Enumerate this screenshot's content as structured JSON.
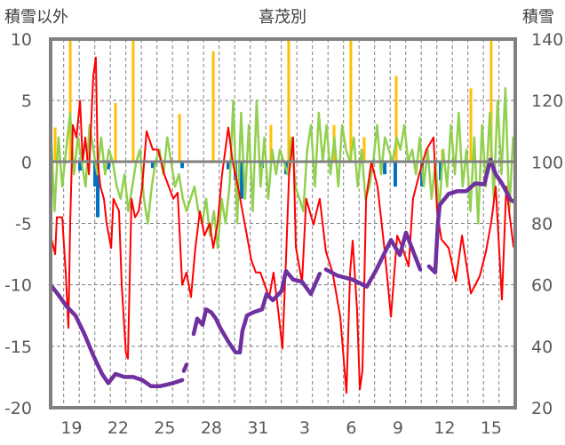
{
  "chart_data": {
    "type": "line",
    "title": "喜茂別",
    "left_axis_label": "積雪以外",
    "right_axis_label": "積雪",
    "ylim_left": [
      -20,
      10
    ],
    "ylim_right": [
      20,
      140
    ],
    "yticks_left": [
      "10",
      "5",
      "0",
      "-5",
      "-10",
      "-15",
      "-20"
    ],
    "yticks_right": [
      "140",
      "120",
      "100",
      "80",
      "60",
      "40",
      "20"
    ],
    "x_unit": "days since Dec 18 00:00",
    "xlim": [
      0.16,
      30.05
    ],
    "xticks": [
      {
        "x": 1.5,
        "label": "19"
      },
      {
        "x": 4.5,
        "label": "22"
      },
      {
        "x": 7.5,
        "label": "25"
      },
      {
        "x": 10.5,
        "label": "28"
      },
      {
        "x": 13.5,
        "label": "31"
      },
      {
        "x": 16.5,
        "label": "3"
      },
      {
        "x": 19.5,
        "label": "6"
      },
      {
        "x": 22.5,
        "label": "9"
      },
      {
        "x": 25.5,
        "label": "12"
      },
      {
        "x": 28.5,
        "label": "15"
      }
    ],
    "grid": true,
    "colors": {
      "red": "#ff0000",
      "green": "#92d050",
      "purple": "#7030a0",
      "orange": "#ffc000",
      "blue": "#0070c0",
      "frame": "#808080"
    },
    "series": [
      {
        "name": "red",
        "axis": "left",
        "color": "#ff0000",
        "points": [
          [
            0.16,
            -6
          ],
          [
            0.45,
            -7.5
          ],
          [
            0.56,
            -4.5
          ],
          [
            0.9,
            -4.5
          ],
          [
            1.13,
            -9
          ],
          [
            1.3,
            -13.5
          ],
          [
            1.42,
            -5
          ],
          [
            1.59,
            3
          ],
          [
            1.82,
            2
          ],
          [
            2.05,
            5
          ],
          [
            2.22,
            0
          ],
          [
            2.39,
            2
          ],
          [
            2.62,
            -1
          ],
          [
            2.9,
            7
          ],
          [
            3.07,
            8.5
          ],
          [
            3.19,
            0
          ],
          [
            3.36,
            -2
          ],
          [
            3.59,
            -3
          ],
          [
            3.76,
            -5
          ],
          [
            4.05,
            -7
          ],
          [
            4.2,
            -3
          ],
          [
            4.56,
            -4
          ],
          [
            4.73,
            -10
          ],
          [
            5.0,
            -15.5
          ],
          [
            5.13,
            -16
          ],
          [
            5.36,
            -3
          ],
          [
            5.59,
            -4.5
          ],
          [
            5.82,
            -4
          ],
          [
            6.05,
            -2
          ],
          [
            6.33,
            2.5
          ],
          [
            6.73,
            1
          ],
          [
            7.07,
            1
          ],
          [
            7.47,
            -1
          ],
          [
            7.76,
            -2
          ],
          [
            8.05,
            -3
          ],
          [
            8.33,
            -2.5
          ],
          [
            8.62,
            -10
          ],
          [
            8.9,
            -9
          ],
          [
            9.19,
            -11
          ],
          [
            9.47,
            -7
          ],
          [
            9.76,
            -4
          ],
          [
            10.05,
            -6
          ],
          [
            10.39,
            -5
          ],
          [
            10.62,
            -7
          ],
          [
            10.9,
            -5
          ],
          [
            11.19,
            -1
          ],
          [
            11.59,
            2.8
          ],
          [
            11.87,
            0
          ],
          [
            12.21,
            -2
          ],
          [
            12.5,
            -4
          ],
          [
            12.79,
            -6
          ],
          [
            13.07,
            -8
          ],
          [
            13.36,
            -9
          ],
          [
            13.65,
            -9
          ],
          [
            13.93,
            -10
          ],
          [
            14.22,
            -11
          ],
          [
            14.5,
            -9
          ],
          [
            14.79,
            -12
          ],
          [
            15.07,
            -15.2
          ],
          [
            15.3,
            -8
          ],
          [
            15.5,
            -1
          ],
          [
            15.76,
            2
          ],
          [
            15.93,
            -6.9
          ],
          [
            16.33,
            -9.8
          ],
          [
            16.6,
            -3
          ],
          [
            17.07,
            -5.1
          ],
          [
            17.47,
            -3
          ],
          [
            17.87,
            -7.3
          ],
          [
            18.3,
            -9
          ],
          [
            18.79,
            -12.6
          ],
          [
            19.19,
            -18.8
          ],
          [
            19.42,
            -9
          ],
          [
            19.59,
            -6.4
          ],
          [
            19.87,
            -12
          ],
          [
            20.05,
            -18.5
          ],
          [
            20.22,
            -17
          ],
          [
            20.45,
            -3
          ],
          [
            20.79,
            0
          ],
          [
            21.19,
            -2
          ],
          [
            21.65,
            -7.3
          ],
          [
            22.05,
            -12.6
          ],
          [
            22.45,
            -6
          ],
          [
            22.79,
            -7
          ],
          [
            23.19,
            -8.5
          ],
          [
            23.47,
            -3
          ],
          [
            23.87,
            -1
          ],
          [
            24.33,
            1
          ],
          [
            24.79,
            2
          ],
          [
            25.02,
            -4
          ],
          [
            25.3,
            -6.3
          ],
          [
            25.76,
            -7
          ],
          [
            26.22,
            -9.7
          ],
          [
            26.62,
            -6
          ],
          [
            27.19,
            -10.7
          ],
          [
            27.76,
            -9.3
          ],
          [
            28.16,
            -7.3
          ],
          [
            28.5,
            -4.9
          ],
          [
            28.79,
            -2
          ],
          [
            29.19,
            -11.2
          ],
          [
            29.47,
            -2
          ],
          [
            29.65,
            -4
          ],
          [
            29.93,
            -6.9
          ]
        ]
      },
      {
        "name": "green",
        "axis": "left",
        "color": "#92d050",
        "start": 0.16,
        "step": 0.25,
        "values": [
          3,
          -4,
          2,
          -2,
          1,
          4,
          -1,
          2,
          0,
          -2,
          3,
          1,
          -1,
          2,
          -1,
          1,
          0,
          -2,
          -3,
          -1,
          -4,
          -2,
          0,
          1,
          -3,
          -5,
          -2,
          0,
          1,
          -1,
          2,
          0,
          -2,
          -1,
          -3,
          -4,
          -3,
          -2,
          -4,
          -5,
          -3,
          -6,
          -4,
          -7,
          -3,
          -5,
          -2,
          5,
          -5,
          4,
          -3,
          3,
          -4,
          5,
          -2,
          2,
          -3,
          1,
          -1,
          1,
          0,
          -1,
          2,
          -2,
          -3,
          -4,
          1,
          3,
          -2,
          4,
          0,
          3,
          -1,
          2,
          -2,
          3,
          1,
          0,
          2,
          -2,
          1,
          -3,
          -2,
          0,
          3,
          -1,
          2,
          1,
          0,
          2,
          1,
          3,
          0,
          1,
          -1,
          2,
          -2,
          1,
          -3,
          0,
          -4,
          1,
          -2,
          3,
          -1,
          4,
          -2,
          1,
          -4,
          2,
          -5,
          3,
          -2,
          4,
          -3,
          5,
          -1,
          6,
          -4,
          2
        ]
      },
      {
        "name": "purple",
        "axis": "right",
        "color": "#7030a0",
        "points": [
          [
            0.16,
            60
          ],
          [
            0.62,
            57
          ],
          [
            1.19,
            53
          ],
          [
            1.76,
            50
          ],
          [
            2.33,
            44
          ],
          [
            2.9,
            37
          ],
          [
            3.47,
            31
          ],
          [
            3.87,
            28
          ],
          [
            4.33,
            31
          ],
          [
            4.9,
            30
          ],
          [
            5.47,
            30
          ],
          [
            6.05,
            29
          ],
          [
            6.62,
            27
          ],
          [
            7.19,
            27
          ],
          [
            8.05,
            28
          ],
          [
            8.62,
            29
          ],
          null,
          [
            8.73,
            32
          ],
          [
            8.9,
            34
          ],
          null,
          [
            9.36,
            44
          ],
          [
            9.59,
            49
          ],
          [
            9.93,
            47
          ],
          [
            10.16,
            52
          ],
          [
            10.5,
            51
          ],
          [
            10.79,
            49
          ],
          [
            11.07,
            46
          ],
          [
            11.65,
            41
          ],
          [
            12.05,
            38
          ],
          [
            12.33,
            38
          ],
          [
            12.5,
            45
          ],
          [
            12.79,
            50
          ],
          [
            13.19,
            51
          ],
          [
            13.76,
            52
          ],
          [
            14.05,
            57
          ],
          [
            14.45,
            55
          ],
          [
            15.02,
            58
          ],
          [
            15.3,
            64.5
          ],
          [
            15.76,
            61.7
          ],
          [
            16.33,
            61
          ],
          [
            16.9,
            57
          ],
          [
            17.47,
            63.6
          ],
          null,
          [
            17.87,
            65
          ],
          [
            18.61,
            63
          ],
          [
            19.59,
            61.7
          ],
          [
            20.5,
            59.4
          ],
          [
            21.07,
            64.5
          ],
          [
            22.05,
            74.6
          ],
          [
            22.62,
            69.7
          ],
          [
            23.02,
            77
          ],
          [
            23.93,
            65
          ],
          null,
          [
            24.5,
            66
          ],
          [
            24.9,
            64
          ],
          [
            25.07,
            80
          ],
          [
            25.19,
            86
          ],
          [
            25.76,
            89.6
          ],
          [
            26.33,
            90.5
          ],
          [
            26.9,
            90.5
          ],
          [
            27.47,
            93
          ],
          [
            28.05,
            92.7
          ],
          [
            28.45,
            100.8
          ],
          [
            28.79,
            96
          ],
          [
            29.19,
            93
          ],
          [
            29.76,
            87.6
          ],
          [
            30.0,
            87
          ]
        ]
      }
    ],
    "bars_orange": [
      [
        0.45,
        2.8
      ],
      [
        1.42,
        10
      ],
      [
        4.33,
        4.8
      ],
      [
        5.47,
        10
      ],
      [
        8.45,
        3.9
      ],
      [
        10.62,
        9
      ],
      [
        14.33,
        3
      ],
      [
        15.47,
        10
      ],
      [
        18.39,
        3
      ],
      [
        19.47,
        10
      ],
      [
        20.33,
        2
      ],
      [
        22.39,
        7
      ],
      [
        25.36,
        1
      ],
      [
        27.19,
        6
      ],
      [
        28.5,
        10
      ]
    ],
    "bars_blue": [
      [
        2.05,
        -0.7
      ],
      [
        3.02,
        -2
      ],
      [
        3.19,
        -4.5
      ],
      [
        3.87,
        -0.6
      ],
      [
        6.73,
        -0.5
      ],
      [
        8.62,
        -0.5
      ],
      [
        11.59,
        -0.6
      ],
      [
        12.05,
        -1.5
      ],
      [
        12.45,
        -3
      ],
      [
        13.76,
        -0.5
      ],
      [
        15.3,
        -1
      ],
      [
        21.65,
        -1
      ],
      [
        22.33,
        -2
      ],
      [
        24.05,
        -2
      ],
      [
        25.25,
        -1.5
      ]
    ]
  }
}
